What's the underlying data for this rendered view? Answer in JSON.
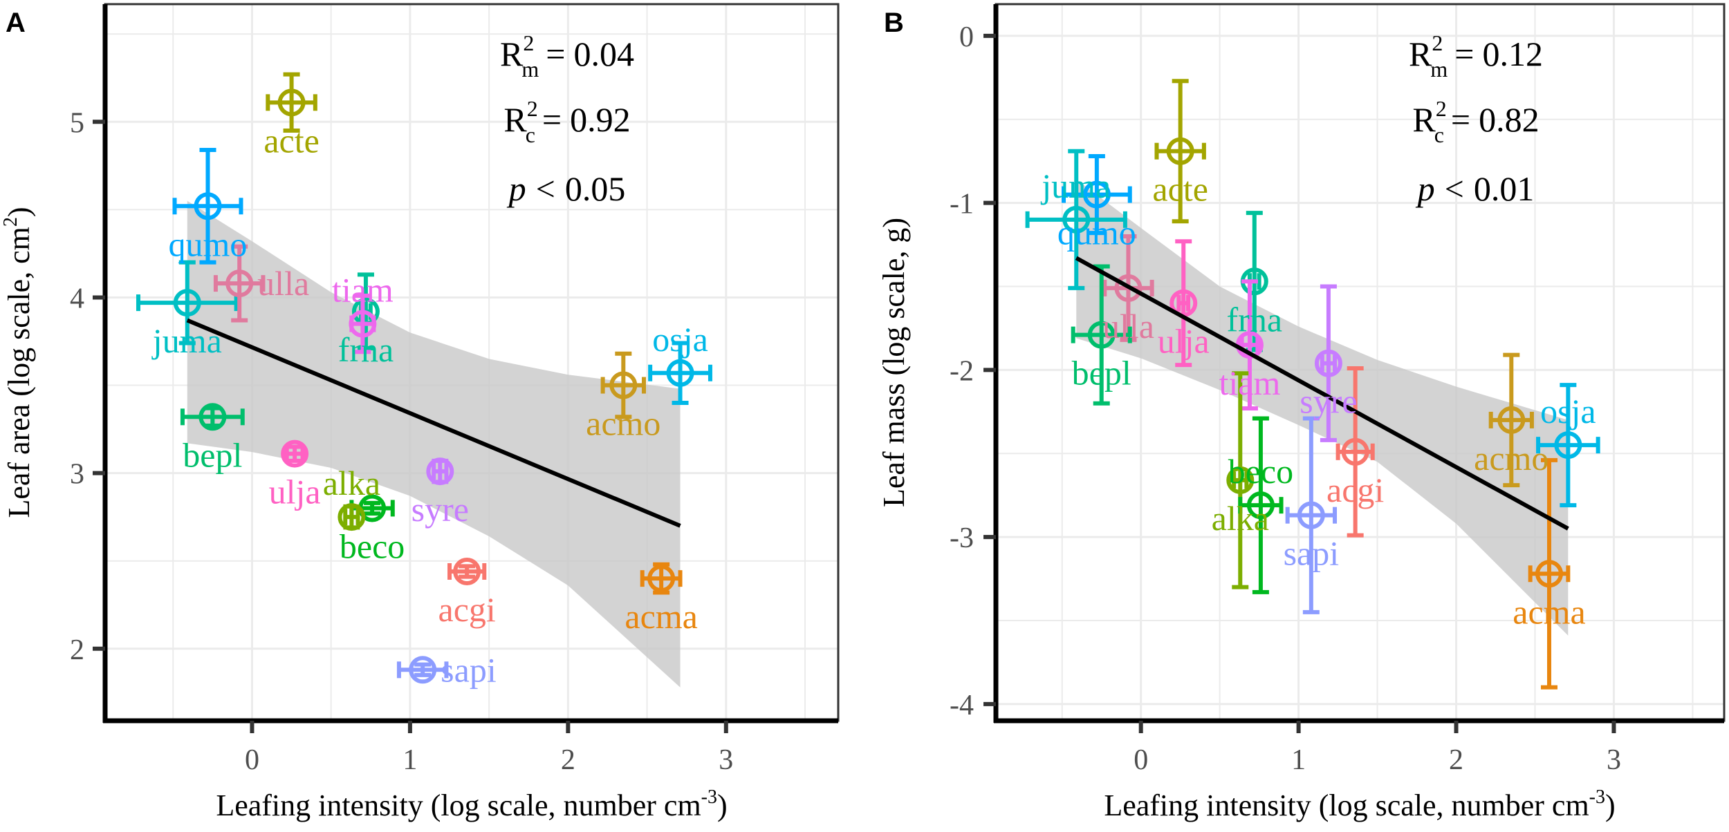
{
  "colors": {
    "acgi": "#F8766D",
    "acma": "#E8860F",
    "acmo": "#C99A1E",
    "acte": "#A3A500",
    "alka": "#7CAE00",
    "beco": "#00B81F",
    "bepl": "#00BE6C",
    "frna": "#00C19A",
    "juma": "#00BFC4",
    "osja": "#00B8E7",
    "qumo": "#00A9FF",
    "sapi": "#8C9CFF",
    "syre": "#C77CFF",
    "tiam": "#ED68ED",
    "ulja": "#FF61C3",
    "ulla": "#E07A9E",
    "fit_line": "#000000",
    "ribbon": "#c8c8c8",
    "grid": "#ebebeb"
  },
  "chart_data": [
    {
      "type": "scatter",
      "panel": "A",
      "xlabel": {
        "text": "Leafing intensity (log scale, number cm",
        "sup": "-3",
        "close": ")"
      },
      "ylabel": {
        "text": "Leaf area (log scale, cm",
        "sup": "2",
        "close": ")"
      },
      "xlim": [
        -0.93,
        3.71
      ],
      "ylim": [
        1.59,
        5.67
      ],
      "xticks": [
        "0",
        "1",
        "2",
        "3"
      ],
      "yticks": [
        "2",
        "3",
        "4",
        "5"
      ],
      "grid": true,
      "annotations": {
        "r2m": {
          "symbol": "R",
          "sup": "2",
          "sub": "m",
          "relation": "=",
          "value": "0.04"
        },
        "r2c": {
          "symbol": "R",
          "sup": "2",
          "sub": "c",
          "relation": "=",
          "value": "0.92"
        },
        "p": {
          "symbol": "p",
          "relation": "<",
          "value": "0.05"
        }
      },
      "fit": {
        "x": [
          -0.41,
          2.71
        ],
        "y": [
          3.87,
          2.7
        ]
      },
      "ribbon": {
        "x": [
          -0.41,
          0,
          0.5,
          1.0,
          1.5,
          2.0,
          2.71
        ],
        "upper": [
          4.55,
          4.32,
          4.03,
          3.8,
          3.65,
          3.56,
          3.48
        ],
        "lower": [
          3.17,
          3.12,
          3.03,
          2.87,
          2.64,
          2.36,
          1.78
        ]
      },
      "points": [
        {
          "label": "acte",
          "x": 0.25,
          "y": 5.11,
          "xerr": 0.15,
          "yerr": 0.16
        },
        {
          "label": "qumo",
          "x": -0.28,
          "y": 4.52,
          "xerr": 0.21,
          "yerr": 0.32
        },
        {
          "label": "juma",
          "x": -0.41,
          "y": 3.97,
          "xerr": 0.31,
          "yerr": 0.23
        },
        {
          "label": "ulla",
          "x": -0.08,
          "y": 4.08,
          "xerr": 0.15,
          "yerr": 0.21
        },
        {
          "label": "frna",
          "x": 0.72,
          "y": 3.92,
          "xerr": 0.03,
          "yerr": 0.21
        },
        {
          "label": "tiam",
          "x": 0.7,
          "y": 3.85,
          "xerr": 0.07,
          "yerr": 0.16
        },
        {
          "label": "acmo",
          "x": 2.35,
          "y": 3.5,
          "xerr": 0.13,
          "yerr": 0.18
        },
        {
          "label": "osja",
          "x": 2.71,
          "y": 3.57,
          "xerr": 0.19,
          "yerr": 0.17
        },
        {
          "label": "bepl",
          "x": -0.25,
          "y": 3.32,
          "xerr": 0.19,
          "yerr": 0.05
        },
        {
          "label": "ulja",
          "x": 0.27,
          "y": 3.11,
          "xerr": 0.05,
          "yerr": 0.04
        },
        {
          "label": "syre",
          "x": 1.19,
          "y": 3.01,
          "xerr": 0.04,
          "yerr": 0.06
        },
        {
          "label": "beco",
          "x": 0.76,
          "y": 2.8,
          "xerr": 0.13,
          "yerr": 0.03
        },
        {
          "label": "alka",
          "x": 0.63,
          "y": 2.75,
          "xerr": 0.04,
          "yerr": 0.06
        },
        {
          "label": "acgi",
          "x": 1.36,
          "y": 2.44,
          "xerr": 0.11,
          "yerr": 0.03
        },
        {
          "label": "acma",
          "x": 2.59,
          "y": 2.4,
          "xerr": 0.12,
          "yerr": 0.08
        },
        {
          "label": "sapi",
          "x": 1.08,
          "y": 1.88,
          "xerr": 0.15,
          "yerr": 0.03
        }
      ]
    },
    {
      "type": "scatter",
      "panel": "B",
      "xlabel": {
        "text": "Leafing intensity (log scale, number cm",
        "sup": "-3",
        "close": ")"
      },
      "ylabel": {
        "text": "Leaf mass (log scale, g)",
        "sup": "",
        "close": ""
      },
      "xlim": [
        -0.92,
        3.7
      ],
      "ylim": [
        -4.1,
        0.19
      ],
      "xticks": [
        "0",
        "1",
        "2",
        "3"
      ],
      "yticks": [
        "-4",
        "-3",
        "-2",
        "-1",
        "0"
      ],
      "grid": true,
      "annotations": {
        "r2m": {
          "symbol": "R",
          "sup": "2",
          "sub": "m",
          "relation": "=",
          "value": "0.12"
        },
        "r2c": {
          "symbol": "R",
          "sup": "2",
          "sub": "c",
          "relation": "=",
          "value": "0.82"
        },
        "p": {
          "symbol": "p",
          "relation": "<",
          "value": "0.01"
        }
      },
      "fit": {
        "x": [
          -0.41,
          2.71
        ],
        "y": [
          -1.33,
          -2.95
        ]
      },
      "ribbon": {
        "x": [
          -0.41,
          0,
          0.5,
          1.0,
          1.5,
          2.0,
          2.71
        ],
        "upper": [
          -0.86,
          -1.15,
          -1.5,
          -1.74,
          -1.94,
          -2.1,
          -2.3
        ],
        "lower": [
          -1.81,
          -1.93,
          -2.12,
          -2.33,
          -2.55,
          -2.92,
          -3.59
        ]
      },
      "points": [
        {
          "label": "acte",
          "x": 0.25,
          "y": -0.69,
          "xerr": 0.15,
          "yerr": 0.42
        },
        {
          "label": "qumo",
          "x": -0.28,
          "y": -0.95,
          "xerr": 0.21,
          "yerr": 0.23
        },
        {
          "label": "juma",
          "x": -0.41,
          "y": -1.1,
          "xerr": 0.31,
          "yerr": 0.41
        },
        {
          "label": "ulla",
          "x": -0.08,
          "y": -1.51,
          "xerr": 0.15,
          "yerr": 0.31
        },
        {
          "label": "ulja",
          "x": 0.27,
          "y": -1.6,
          "xerr": 0.03,
          "yerr": 0.37
        },
        {
          "label": "bepl",
          "x": -0.25,
          "y": -1.79,
          "xerr": 0.18,
          "yerr": 0.41
        },
        {
          "label": "frna",
          "x": 0.72,
          "y": -1.47,
          "xerr": 0.03,
          "yerr": 0.41
        },
        {
          "label": "tiam",
          "x": 0.69,
          "y": -1.85,
          "xerr": 0.05,
          "yerr": 0.38
        },
        {
          "label": "syre",
          "x": 1.19,
          "y": -1.96,
          "xerr": 0.04,
          "yerr": 0.46
        },
        {
          "label": "acgi",
          "x": 1.36,
          "y": -2.49,
          "xerr": 0.11,
          "yerr": 0.5
        },
        {
          "label": "acmo",
          "x": 2.35,
          "y": -2.3,
          "xerr": 0.13,
          "yerr": 0.39
        },
        {
          "label": "osja",
          "x": 2.71,
          "y": -2.45,
          "xerr": 0.19,
          "yerr": 0.36
        },
        {
          "label": "acma",
          "x": 2.59,
          "y": -3.22,
          "xerr": 0.12,
          "yerr": 0.68
        },
        {
          "label": "alka",
          "x": 0.63,
          "y": -2.66,
          "xerr": 0.04,
          "yerr": 0.64
        },
        {
          "label": "beco",
          "x": 0.76,
          "y": -2.81,
          "xerr": 0.13,
          "yerr": 0.52
        },
        {
          "label": "sapi",
          "x": 1.08,
          "y": -2.87,
          "xerr": 0.15,
          "yerr": 0.58
        }
      ]
    }
  ]
}
